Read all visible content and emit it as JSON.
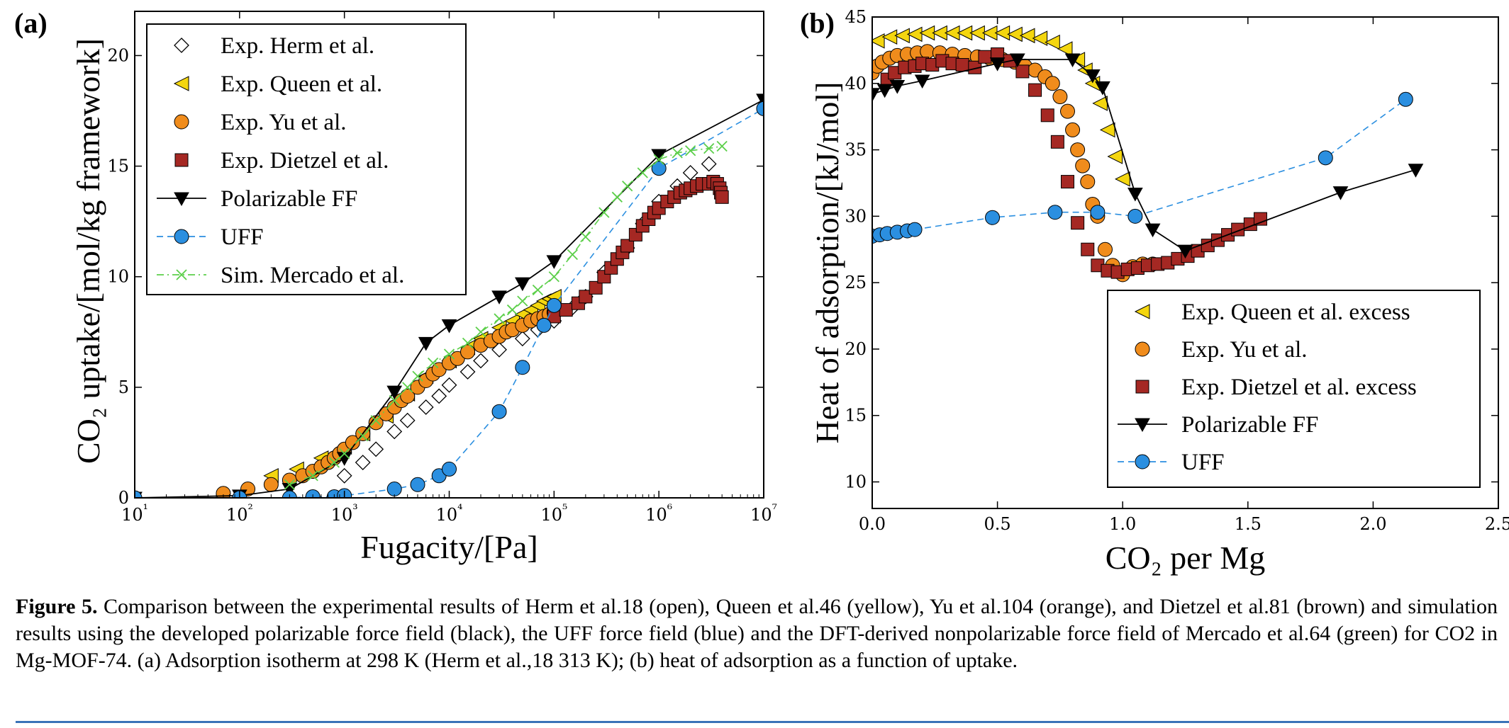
{
  "chart_data": [
    {
      "panel_label": "(a)",
      "type": "line",
      "xlabel": "Fugacity/[Pa]",
      "ylabel": "CO₂ uptake/[mol/kg framework]",
      "xscale": "log",
      "xlim": [
        10,
        10000000
      ],
      "ylim": [
        0,
        22
      ],
      "x_ticks": [
        "10¹",
        "10²",
        "10³",
        "10⁴",
        "10⁵",
        "10⁶",
        "10⁷"
      ],
      "y_ticks": [
        "0",
        "5",
        "10",
        "15",
        "20"
      ],
      "legend_position": "top-left",
      "series": [
        {
          "name": "Exp. Herm et al.",
          "marker": "diamond-open",
          "color": "#000000",
          "x": [
            1000,
            1500,
            2000,
            3000,
            4000,
            6000,
            8000,
            10000,
            15000,
            20000,
            30000,
            50000,
            70000,
            100000,
            150000,
            200000,
            300000,
            500000,
            700000,
            1000000,
            1500000,
            2000000,
            3000000
          ],
          "y": [
            1.0,
            1.6,
            2.2,
            3.0,
            3.5,
            4.1,
            4.6,
            5.1,
            5.7,
            6.2,
            6.7,
            7.2,
            7.6,
            8.0,
            8.6,
            9.1,
            10.2,
            11.3,
            12.4,
            13.4,
            14.1,
            14.7,
            15.1
          ]
        },
        {
          "name": "Exp. Queen et al.",
          "marker": "triangle-left",
          "color": "#f4d60f",
          "x": [
            200,
            350,
            600,
            1000,
            1500,
            2500,
            4000,
            6000,
            10000,
            15000,
            20000,
            30000,
            40000,
            50000,
            60000,
            70000,
            80000,
            90000,
            100000
          ],
          "y": [
            1.0,
            1.3,
            1.8,
            2.3,
            2.9,
            3.7,
            4.7,
            5.5,
            6.2,
            6.8,
            7.2,
            7.7,
            8.0,
            8.3,
            8.5,
            8.7,
            8.9,
            9.0,
            9.1
          ]
        },
        {
          "name": "Exp. Yu et al.",
          "marker": "circle",
          "color": "#f08c1c",
          "x": [
            70,
            120,
            200,
            300,
            400,
            500,
            600,
            700,
            800,
            900,
            1000,
            1200,
            1500,
            2000,
            2500,
            3000,
            3500,
            4000,
            5000,
            6000,
            7000,
            8000,
            10000,
            12000,
            15000,
            20000,
            25000,
            30000,
            35000,
            40000,
            50000,
            60000,
            70000,
            80000,
            90000,
            100000
          ],
          "y": [
            0.2,
            0.4,
            0.6,
            0.8,
            1.0,
            1.2,
            1.4,
            1.6,
            1.8,
            2.0,
            2.2,
            2.5,
            2.9,
            3.4,
            3.8,
            4.1,
            4.4,
            4.6,
            5.0,
            5.3,
            5.6,
            5.8,
            6.1,
            6.3,
            6.6,
            6.9,
            7.1,
            7.3,
            7.5,
            7.6,
            7.8,
            8.0,
            8.1,
            8.2,
            8.3,
            8.4
          ]
        },
        {
          "name": "Exp. Dietzel et al.",
          "marker": "square",
          "color": "#a52823",
          "x": [
            100000,
            130000,
            170000,
            200000,
            250000,
            300000,
            350000,
            400000,
            450000,
            500000,
            600000,
            700000,
            800000,
            900000,
            1000000,
            1200000,
            1400000,
            1600000,
            1800000,
            2000000,
            2300000,
            2600000,
            3000000,
            3300000,
            3600000,
            3800000,
            3900000,
            4000000
          ],
          "y": [
            8.2,
            8.5,
            8.8,
            9.1,
            9.5,
            10.0,
            10.4,
            10.8,
            11.1,
            11.4,
            11.9,
            12.3,
            12.6,
            12.9,
            13.1,
            13.4,
            13.6,
            13.8,
            13.9,
            14.0,
            14.1,
            14.2,
            14.2,
            14.3,
            14.2,
            14.0,
            13.8,
            13.6
          ]
        },
        {
          "name": "Polarizable FF",
          "marker": "triangle-down",
          "color": "#000000",
          "line": "solid",
          "x": [
            10,
            100,
            300,
            1000,
            3000,
            6000,
            10000,
            30000,
            50000,
            100000,
            1000000,
            10000000
          ],
          "y": [
            0.0,
            0.1,
            0.4,
            1.8,
            4.8,
            7.0,
            7.8,
            9.1,
            9.7,
            10.7,
            15.5,
            18.0
          ]
        },
        {
          "name": "UFF",
          "marker": "circle",
          "color": "#2b8fe0",
          "line": "dashed",
          "x": [
            10,
            100,
            300,
            500,
            800,
            1000,
            3000,
            5000,
            8000,
            10000,
            30000,
            50000,
            80000,
            100000,
            1000000,
            10000000
          ],
          "y": [
            0.0,
            0.0,
            0.0,
            0.05,
            0.05,
            0.1,
            0.4,
            0.6,
            1.0,
            1.3,
            3.9,
            5.9,
            7.8,
            8.7,
            14.9,
            17.6
          ]
        },
        {
          "name": "Sim. Mercado et al.",
          "marker": "x",
          "color": "#5ccf4a",
          "line": "dashdot",
          "x": [
            300,
            500,
            800,
            1000,
            1500,
            2000,
            3000,
            4000,
            5000,
            7000,
            10000,
            15000,
            20000,
            30000,
            40000,
            50000,
            70000,
            100000,
            150000,
            200000,
            300000,
            400000,
            500000,
            700000,
            1000000,
            1500000,
            2000000,
            3000000,
            4000000
          ],
          "y": [
            0.6,
            1.0,
            1.6,
            2.0,
            2.8,
            3.5,
            4.4,
            5.0,
            5.5,
            6.1,
            6.5,
            7.0,
            7.5,
            8.1,
            8.5,
            8.9,
            9.4,
            10.0,
            11.0,
            11.8,
            12.9,
            13.6,
            14.1,
            14.7,
            15.3,
            15.6,
            15.7,
            15.8,
            15.9
          ]
        }
      ]
    },
    {
      "panel_label": "(b)",
      "type": "line",
      "xlabel": "CO₂ per Mg",
      "ylabel": "Heat of adsorption/[kJ/mol]",
      "xlim": [
        0.0,
        2.5
      ],
      "ylim": [
        8,
        45
      ],
      "x_ticks": [
        "0.0",
        "0.5",
        "1.0",
        "1.5",
        "2.0",
        "2.5"
      ],
      "y_ticks": [
        "10",
        "15",
        "20",
        "25",
        "30",
        "35",
        "40",
        "45"
      ],
      "legend_position": "bottom-right",
      "series": [
        {
          "name": "Exp. Queen et al. excess",
          "marker": "triangle-left",
          "color": "#f4d60f",
          "x": [
            0.02,
            0.07,
            0.12,
            0.17,
            0.22,
            0.27,
            0.32,
            0.37,
            0.42,
            0.47,
            0.52,
            0.57,
            0.62,
            0.67,
            0.72,
            0.77,
            0.82,
            0.85,
            0.88,
            0.91,
            0.94,
            0.97,
            1.0
          ],
          "y": [
            43.2,
            43.5,
            43.6,
            43.7,
            43.8,
            43.8,
            43.8,
            43.8,
            43.8,
            43.8,
            43.8,
            43.7,
            43.6,
            43.4,
            43.1,
            42.6,
            41.8,
            41.0,
            40.0,
            38.5,
            36.5,
            34.5,
            32.8
          ]
        },
        {
          "name": "Exp. Yu et al.",
          "marker": "circle",
          "color": "#f08c1c",
          "x": [
            0.0,
            0.02,
            0.04,
            0.07,
            0.1,
            0.14,
            0.18,
            0.22,
            0.27,
            0.32,
            0.37,
            0.42,
            0.47,
            0.52,
            0.57,
            0.61,
            0.65,
            0.69,
            0.72,
            0.75,
            0.78,
            0.8,
            0.82,
            0.84,
            0.86,
            0.88,
            0.9,
            0.93,
            0.96,
            1.0,
            1.04,
            1.08,
            1.12
          ],
          "y": [
            40.8,
            41.3,
            41.6,
            41.9,
            42.1,
            42.2,
            42.3,
            42.4,
            42.3,
            42.2,
            42.1,
            42.0,
            41.9,
            41.8,
            41.6,
            41.3,
            41.0,
            40.5,
            40.0,
            39.0,
            37.9,
            36.5,
            35.0,
            33.8,
            32.6,
            30.9,
            30.0,
            27.5,
            26.3,
            25.6,
            26.2,
            26.4,
            26.4
          ]
        },
        {
          "name": "Exp. Dietzel et al. excess",
          "marker": "square",
          "color": "#a52823",
          "x": [
            0.06,
            0.09,
            0.13,
            0.17,
            0.2,
            0.24,
            0.28,
            0.32,
            0.36,
            0.41,
            0.45,
            0.5,
            0.55,
            0.6,
            0.65,
            0.7,
            0.74,
            0.78,
            0.82,
            0.86,
            0.9,
            0.94,
            0.98,
            1.02,
            1.06,
            1.1,
            1.14,
            1.18,
            1.22,
            1.26,
            1.3,
            1.34,
            1.38,
            1.42,
            1.46,
            1.51,
            1.55
          ],
          "y": [
            40.3,
            40.8,
            41.2,
            41.3,
            41.5,
            41.4,
            41.7,
            41.5,
            41.4,
            41.2,
            42.0,
            42.2,
            41.7,
            40.9,
            39.5,
            37.6,
            35.6,
            32.6,
            29.5,
            27.5,
            26.3,
            25.9,
            25.8,
            26.0,
            26.1,
            26.3,
            26.4,
            26.5,
            26.8,
            27.0,
            27.4,
            27.8,
            28.2,
            28.6,
            29.0,
            29.4,
            29.8
          ]
        },
        {
          "name": "Polarizable FF",
          "marker": "triangle-down",
          "color": "#000000",
          "line": "solid",
          "x": [
            0.0,
            0.05,
            0.1,
            0.2,
            0.5,
            0.58,
            0.8,
            0.88,
            0.92,
            1.05,
            1.12,
            1.25,
            1.87,
            2.17
          ],
          "y": [
            39.2,
            39.5,
            39.8,
            40.2,
            41.5,
            41.8,
            41.8,
            40.6,
            39.7,
            31.7,
            29.0,
            27.4,
            31.8,
            33.5
          ]
        },
        {
          "name": "UFF",
          "marker": "circle",
          "color": "#2b8fe0",
          "line": "dashed",
          "x": [
            0.0,
            0.03,
            0.06,
            0.1,
            0.14,
            0.17,
            0.48,
            0.73,
            0.9,
            1.05,
            1.81,
            2.13
          ],
          "y": [
            28.5,
            28.6,
            28.7,
            28.8,
            28.9,
            29.0,
            29.9,
            30.3,
            30.3,
            30.0,
            34.4,
            38.8
          ]
        }
      ]
    }
  ],
  "caption": {
    "lead": "Figure 5.",
    "text": " Comparison between the experimental results of Herm et al.18 (open), Queen et al.46 (yellow), Yu et al.104 (orange), and Dietzel et al.81 (brown) and simulation results using the developed polarizable force field (black), the UFF force field (blue) and the DFT-derived nonpolarizable force field of Mercado et al.64 (green) for CO2 in Mg-MOF-74. (a) Adsorption isotherm at 298 K (Herm et al.,18 313 K); (b) heat of adsorption as a function of uptake."
  }
}
